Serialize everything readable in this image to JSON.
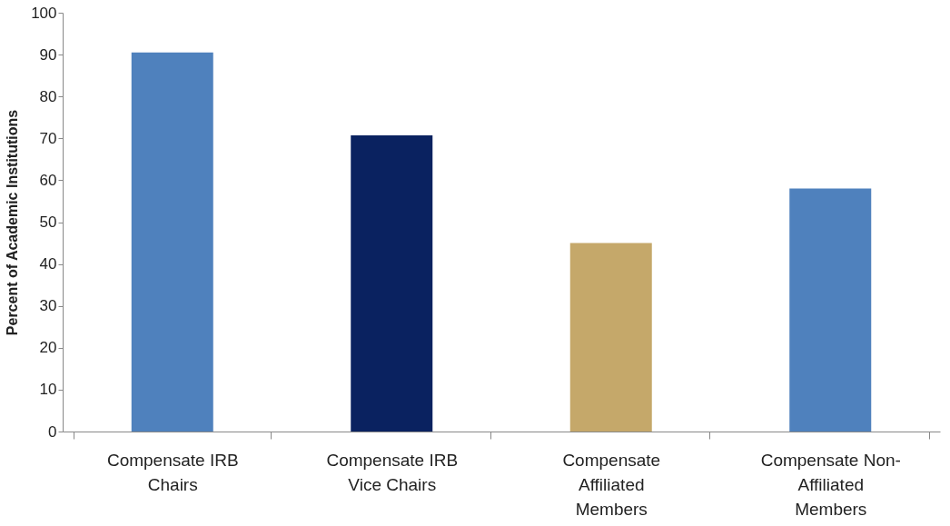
{
  "chart_data": {
    "type": "bar",
    "ylabel": "Percent of Academic Institutions",
    "categories": [
      "Compensate IRB Chairs",
      "Compensate IRB Vice Chairs",
      "Compensate Affiliated Members",
      "Compensate Non-Affiliated Members"
    ],
    "values": [
      90.5,
      70.7,
      45,
      58
    ],
    "colors": [
      "#4f81bd",
      "#0a2260",
      "#c5a86a",
      "#4f81bd"
    ],
    "ylim": [
      0,
      100
    ],
    "yticks": [
      0,
      10,
      20,
      30,
      40,
      50,
      60,
      70,
      80,
      90,
      100
    ],
    "grid": false
  }
}
